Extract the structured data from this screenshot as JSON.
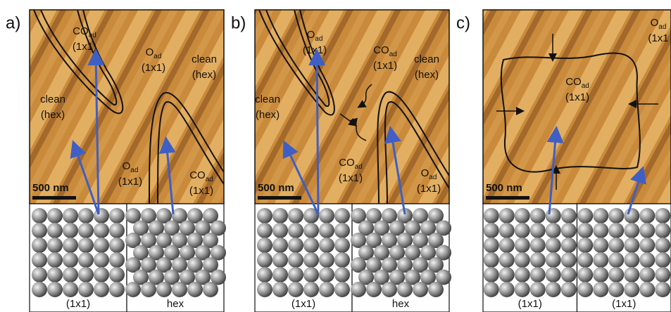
{
  "panels": [
    {
      "label": "a)",
      "scale_bar": "500 nm",
      "annotations": [
        {
          "lines": [
            {
              "text": "CO",
              "sub": "ad"
            },
            {
              "text": "(1x1)"
            }
          ]
        },
        {
          "lines": [
            {
              "text": "O",
              "sub": "ad"
            },
            {
              "text": "(1x1)"
            }
          ]
        },
        {
          "lines": [
            {
              "text": "clean"
            },
            {
              "text": "(hex)"
            }
          ]
        },
        {
          "lines": [
            {
              "text": "clean"
            },
            {
              "text": "(hex)"
            }
          ]
        },
        {
          "lines": [
            {
              "text": "O",
              "sub": "ad"
            },
            {
              "text": "(1x1)"
            }
          ]
        },
        {
          "lines": [
            {
              "text": "CO",
              "sub": "ad"
            },
            {
              "text": "(1x1)"
            }
          ]
        }
      ],
      "models": [
        {
          "caption": "(1x1)"
        },
        {
          "caption": "hex"
        }
      ]
    },
    {
      "label": "b)",
      "scale_bar": "500 nm",
      "annotations": [
        {
          "lines": [
            {
              "text": "O",
              "sub": "ad"
            },
            {
              "text": "(1x1)"
            }
          ]
        },
        {
          "lines": [
            {
              "text": "CO",
              "sub": "ad"
            },
            {
              "text": "(1x1)"
            }
          ]
        },
        {
          "lines": [
            {
              "text": "clean"
            },
            {
              "text": "(hex)"
            }
          ]
        },
        {
          "lines": [
            {
              "text": "clean"
            },
            {
              "text": "(hex)"
            }
          ]
        },
        {
          "lines": [
            {
              "text": "CO",
              "sub": "ad"
            },
            {
              "text": "(1x1)"
            }
          ]
        },
        {
          "lines": [
            {
              "text": "O",
              "sub": "ad"
            },
            {
              "text": "(1x1)"
            }
          ]
        }
      ],
      "models": [
        {
          "caption": "(1x1)"
        },
        {
          "caption": "hex"
        }
      ]
    },
    {
      "label": "c)",
      "scale_bar": "500 nm",
      "annotations": [
        {
          "lines": [
            {
              "text": "O",
              "sub": "ad"
            },
            {
              "text": "(1x1"
            }
          ]
        },
        {
          "lines": [
            {
              "text": "CO",
              "sub": "ad"
            },
            {
              "text": "(1x1)"
            }
          ]
        }
      ],
      "models": [
        {
          "caption": "(1x1)"
        },
        {
          "caption": "(1x1)"
        }
      ]
    }
  ]
}
